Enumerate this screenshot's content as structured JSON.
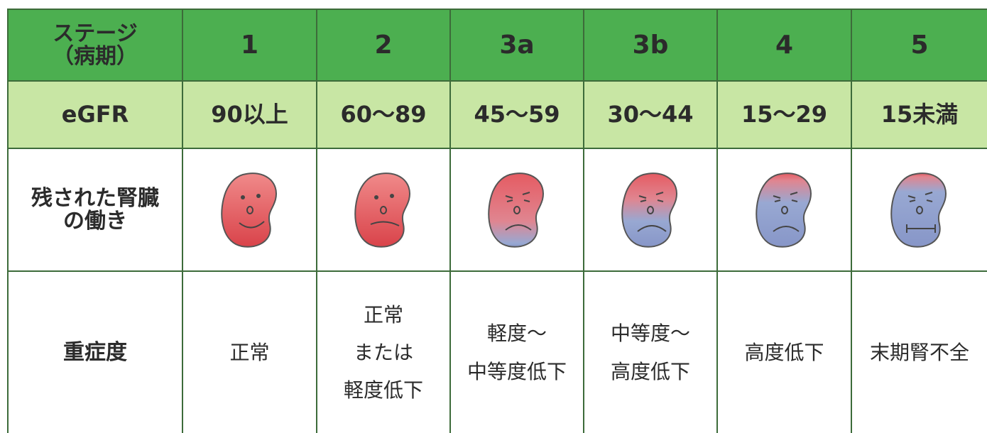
{
  "table": {
    "stage_row": [
      [
        "ステージ",
        "（病期）"
      ],
      [
        "1"
      ],
      [
        "2"
      ],
      [
        "3a"
      ],
      [
        "3b"
      ],
      [
        "4"
      ],
      [
        "5"
      ]
    ],
    "egfr_row": [
      [
        "eGFR"
      ],
      [
        "90以上"
      ],
      [
        "60～89"
      ],
      [
        "45～59"
      ],
      [
        "30～44"
      ],
      [
        "15～29"
      ],
      [
        "15未満"
      ]
    ],
    "function_label": [
      "残された腎臓",
      "の働き"
    ],
    "severity_row": [
      [
        "重症度"
      ],
      [
        "正常"
      ],
      [
        "正常",
        "または",
        "軽度低下"
      ],
      [
        "軽度～",
        "中等度低下"
      ],
      [
        "中等度～",
        "高度低下"
      ],
      [
        "高度低下"
      ],
      [
        "末期腎不全"
      ]
    ]
  }
}
